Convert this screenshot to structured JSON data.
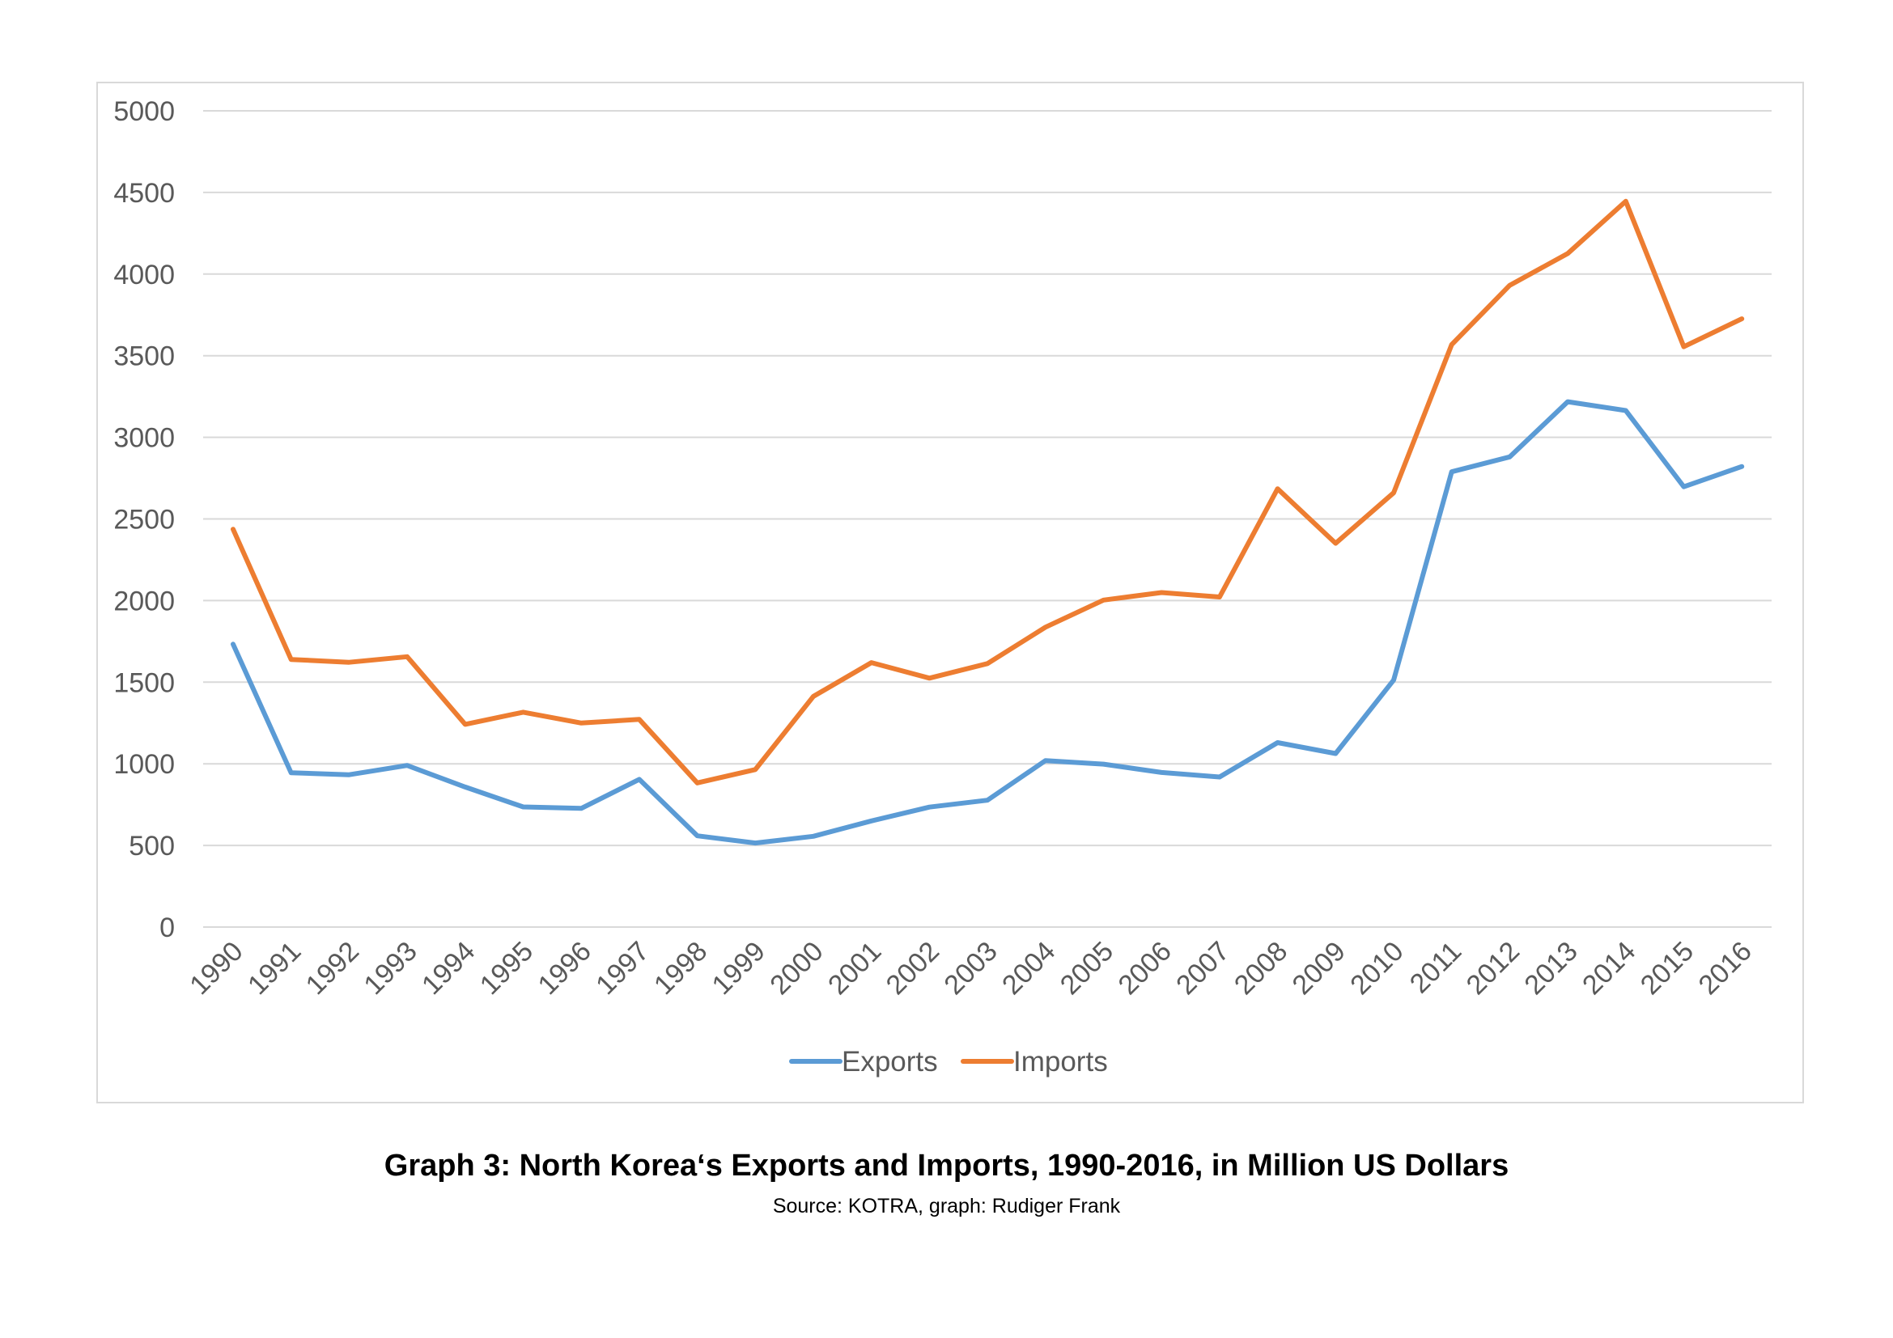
{
  "caption": "Graph 3: North Korea‘s Exports and Imports, 1990-2016, in Million US Dollars",
  "source": "Source: KOTRA, graph: Rudiger Frank",
  "chart_data": {
    "type": "line",
    "title": "",
    "xlabel": "",
    "ylabel": "",
    "ylim": [
      0,
      5000
    ],
    "yticks": [
      0,
      500,
      1000,
      1500,
      2000,
      2500,
      3000,
      3500,
      4000,
      4500,
      5000
    ],
    "grid": "horizontal",
    "legend_position": "bottom",
    "categories": [
      "1990",
      "1991",
      "1992",
      "1993",
      "1994",
      "1995",
      "1996",
      "1997",
      "1998",
      "1999",
      "2000",
      "2001",
      "2002",
      "2003",
      "2004",
      "2005",
      "2006",
      "2007",
      "2008",
      "2009",
      "2010",
      "2011",
      "2012",
      "2013",
      "2014",
      "2015",
      "2016"
    ],
    "series": [
      {
        "name": "Exports",
        "color": "#5b9bd5",
        "values": [
          1733,
          945,
          933,
          990,
          858,
          736,
          727,
          905,
          559,
          515,
          556,
          650,
          735,
          777,
          1020,
          998,
          947,
          919,
          1130,
          1063,
          1513,
          2789,
          2880,
          3218,
          3164,
          2697,
          2821
        ]
      },
      {
        "name": "Imports",
        "color": "#ed7d31",
        "values": [
          2437,
          1639,
          1622,
          1656,
          1242,
          1316,
          1250,
          1272,
          883,
          965,
          1413,
          1620,
          1525,
          1614,
          1837,
          2003,
          2049,
          2022,
          2685,
          2351,
          2660,
          3568,
          3931,
          4126,
          4446,
          3555,
          3726
        ]
      }
    ]
  }
}
